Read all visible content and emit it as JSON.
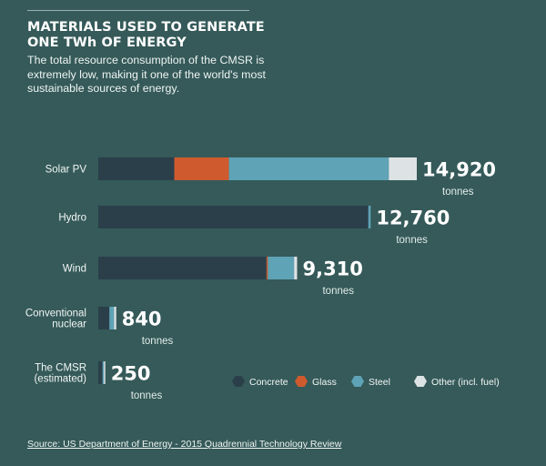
{
  "header": {
    "title_lines": [
      "MATERIALS USED TO GENERATE",
      "ONE TWh OF ENERGY"
    ],
    "subtitle_lines": [
      "The total resource consumption of the CMSR is",
      "extremely low, making it one of the world's most",
      "sustainable sources of energy."
    ]
  },
  "chart_data": {
    "type": "bar",
    "orientation": "horizontal",
    "stacked": true,
    "unit": "tonnes",
    "categories": [
      [
        "Solar PV"
      ],
      [
        "Hydro"
      ],
      [
        "Wind"
      ],
      [
        "Conventional",
        "nuclear"
      ],
      [
        "The CMSR",
        "(estimated)"
      ]
    ],
    "totals": [
      "14,920",
      "12,760",
      "9,310",
      "840",
      "250"
    ],
    "series": [
      {
        "name": "Concrete",
        "color": "#2b3f4b",
        "values": [
          3560,
          12650,
          7880,
          520,
          200
        ]
      },
      {
        "name": "Glass",
        "color": "#cf5a2e",
        "values": [
          2560,
          0,
          60,
          0,
          0
        ]
      },
      {
        "name": "Steel",
        "color": "#5fa3b6",
        "values": [
          7490,
          110,
          1230,
          220,
          40
        ]
      },
      {
        "name": "Other (incl. fuel)",
        "color": "#dde3e5",
        "values": [
          1310,
          0,
          140,
          100,
          10
        ]
      }
    ],
    "xlim": [
      0,
      14920
    ],
    "grid": false,
    "legend_position": "bottom-right"
  },
  "source": {
    "label": "Source: US Department of Energy - 2015 Quadrennial Technology Review"
  }
}
